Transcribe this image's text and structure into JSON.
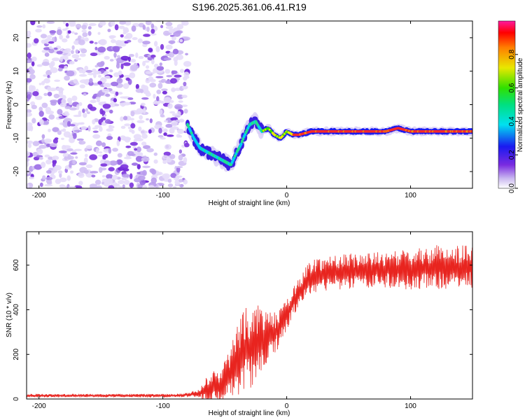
{
  "title": "S196.2025.361.06.41.R19",
  "chart_data": [
    {
      "type": "heatmap",
      "xlabel": "Height of straight line (km)",
      "ylabel": "Frequency (Hz)",
      "xlim": [
        -210,
        150
      ],
      "ylim": [
        -25,
        25
      ],
      "x_ticks": [
        -200,
        -100,
        0,
        100
      ],
      "x_tick_labels": [
        "-200",
        "-100",
        "0",
        "100"
      ],
      "y_ticks": [
        -20,
        -10,
        0,
        10,
        20
      ],
      "y_tick_labels": [
        "-20",
        "-10",
        "0",
        "10",
        "20"
      ],
      "noise_region_x": [
        -210,
        -80
      ],
      "signal_trace": {
        "x": [
          -80,
          -75,
          -70,
          -65,
          -60,
          -55,
          -50,
          -45,
          -40,
          -37,
          -35,
          -30,
          -25,
          -22,
          -20,
          -15,
          -10,
          -5,
          0,
          5,
          10,
          20,
          40,
          60,
          80,
          90,
          100,
          120,
          150
        ],
        "y": [
          -6,
          -10,
          -13,
          -14,
          -15,
          -16,
          -17,
          -18,
          -14,
          -12,
          -10,
          -6,
          -5,
          -7,
          -8,
          -7,
          -9,
          -10,
          -8,
          -9,
          -9,
          -8,
          -8,
          -8,
          -8,
          -7,
          -8,
          -8,
          -8
        ]
      },
      "colorbar": {
        "label": "Normalized spectral amplitude",
        "range": [
          0,
          1
        ],
        "ticks": [
          0.0,
          0.2,
          0.4,
          0.6,
          0.8
        ],
        "tick_labels": [
          "0.0",
          "0.2",
          "0.4",
          "0.6",
          "0.8"
        ]
      }
    },
    {
      "type": "line",
      "color": "#e8241f",
      "xlabel": "Height of straight line (km)",
      "ylabel": "SNR (10 * v/v)",
      "xlim": [
        -210,
        150
      ],
      "ylim": [
        0,
        750
      ],
      "x_ticks": [
        -200,
        -100,
        0,
        100
      ],
      "x_tick_labels": [
        "-200",
        "-100",
        "0",
        "100"
      ],
      "y_ticks": [
        0,
        200,
        400,
        600
      ],
      "y_tick_labels": [
        "0",
        "200",
        "400",
        "600"
      ],
      "series": [
        {
          "name": "SNR",
          "x": [
            -210,
            -180,
            -150,
            -120,
            -90,
            -80,
            -70,
            -65,
            -60,
            -55,
            -50,
            -45,
            -40,
            -35,
            -30,
            -25,
            -20,
            -15,
            -10,
            -5,
            0,
            5,
            10,
            15,
            20,
            30,
            40,
            60,
            80,
            100,
            120,
            150
          ],
          "mean": [
            15,
            15,
            15,
            15,
            15,
            18,
            25,
            40,
            60,
            50,
            80,
            120,
            170,
            220,
            230,
            250,
            260,
            280,
            290,
            330,
            380,
            430,
            480,
            520,
            550,
            560,
            570,
            575,
            580,
            580,
            590,
            590
          ],
          "amp": [
            8,
            8,
            8,
            8,
            8,
            10,
            20,
            60,
            80,
            60,
            100,
            130,
            170,
            190,
            190,
            170,
            160,
            120,
            100,
            80,
            80,
            70,
            60,
            70,
            80,
            80,
            80,
            80,
            80,
            90,
            100,
            100
          ]
        }
      ]
    }
  ]
}
